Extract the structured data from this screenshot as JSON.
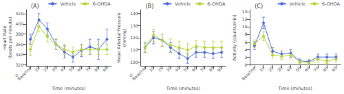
{
  "chart_data": [
    {
      "type": "line",
      "title": "(A)",
      "xlabel": "Time (minutes)",
      "ylabel": "Heart Rate\n(beats per minute)",
      "categories": [
        "Baseline",
        "10",
        "20",
        "30",
        "40",
        "50",
        "60",
        "70",
        "80",
        "90"
      ],
      "series": [
        {
          "name": "Vehicle",
          "marker": "circle",
          "values": [
            370,
            408,
            390,
            360,
            345,
            335,
            348,
            355,
            350,
            370
          ],
          "errors": [
            10,
            12,
            12,
            10,
            12,
            10,
            12,
            15,
            20,
            20
          ]
        },
        {
          "name": "6-OHDA",
          "marker": "circle",
          "values": [
            350,
            395,
            375,
            360,
            350,
            345,
            350,
            350,
            350,
            350
          ],
          "errors": [
            12,
            10,
            10,
            10,
            10,
            10,
            10,
            10,
            10,
            10
          ]
        }
      ],
      "ylim": [
        318,
        428
      ],
      "yticks": [
        320,
        340,
        360,
        380,
        400,
        420
      ],
      "grid": false,
      "legend": "upper right",
      "annotations": [
        "0"
      ]
    },
    {
      "type": "line",
      "title": "(B)",
      "xlabel": "Time (minutes)",
      "ylabel": "Mean Arterial Pressure\n(mmHg)",
      "categories": [
        "Baseline",
        "10",
        "20",
        "30",
        "40",
        "50",
        "60",
        "70",
        "80",
        "90"
      ],
      "series": [
        {
          "name": "Vehicle",
          "marker": "circle",
          "values": [
            112,
            120,
            118,
            112,
            107,
            103,
            108,
            108,
            107,
            108
          ],
          "errors": [
            4,
            5,
            5,
            4,
            4,
            4,
            4,
            4,
            4,
            4
          ]
        },
        {
          "name": "6-OHDA",
          "marker": "circle",
          "values": [
            112,
            122,
            118,
            114,
            112,
            110,
            113,
            112,
            112,
            112
          ],
          "errors": [
            4,
            5,
            5,
            5,
            5,
            5,
            5,
            5,
            5,
            5
          ]
        }
      ],
      "ylim": [
        97,
        143
      ],
      "yticks": [
        100,
        110,
        120,
        130,
        140
      ],
      "grid": false,
      "legend": "upper right",
      "annotations": [
        "0"
      ]
    },
    {
      "type": "line",
      "title": "(C)",
      "xlabel": "Time (minutes)",
      "ylabel": "Activity (counts/min)",
      "categories": [
        "Baseline",
        "10",
        "20",
        "30",
        "40",
        "50",
        "60",
        "70",
        "80",
        "90"
      ],
      "series": [
        {
          "name": "Vehicle",
          "marker": "circle",
          "values": [
            5.0,
            11.0,
            3.5,
            2.8,
            3.0,
            1.0,
            0.8,
            2.0,
            2.0,
            2.0
          ],
          "errors": [
            1.0,
            1.5,
            1.0,
            0.8,
            1.0,
            0.5,
            0.5,
            0.8,
            0.8,
            0.8
          ]
        },
        {
          "name": "6-OHDA",
          "marker": "circle",
          "values": [
            5.5,
            7.5,
            2.5,
            2.2,
            2.5,
            0.8,
            0.5,
            1.5,
            0.8,
            1.5
          ],
          "errors": [
            1.0,
            1.2,
            0.8,
            0.8,
            0.8,
            0.5,
            0.5,
            0.8,
            0.5,
            0.8
          ]
        }
      ],
      "ylim": [
        -0.3,
        14.5
      ],
      "yticks": [
        0,
        2,
        4,
        6,
        8,
        10,
        12,
        14
      ],
      "grid": false,
      "legend": "upper right"
    }
  ]
}
